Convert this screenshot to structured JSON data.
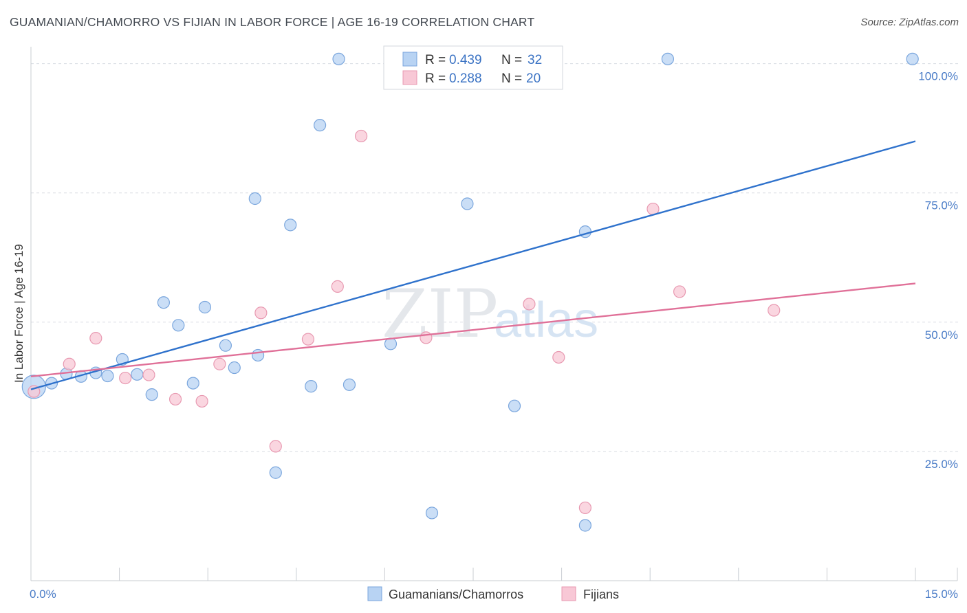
{
  "title": "GUAMANIAN/CHAMORRO VS FIJIAN IN LABOR FORCE | AGE 16-19 CORRELATION CHART",
  "source": "Source: ZipAtlas.com",
  "watermark": {
    "zip": "ZIP",
    "atlas": "atlas"
  },
  "colors": {
    "blue_fill": "#b8d3f3",
    "blue_stroke": "#7aa6dd",
    "blue_line": "#2f72cc",
    "pink_fill": "#f8c8d6",
    "pink_stroke": "#e899b1",
    "pink_line": "#e07098",
    "tick_label": "#4a7cc7",
    "grid": "#d8dce2"
  },
  "legend": {
    "rows": [
      {
        "r_label": "R =",
        "r_value": "0.439",
        "n_label": "N =",
        "n_value": "32"
      },
      {
        "r_label": "R =",
        "r_value": "0.288",
        "n_label": "N =",
        "n_value": "20"
      }
    ]
  },
  "chart_data": {
    "type": "scatter",
    "title": "GUAMANIAN/CHAMORRO VS FIJIAN IN LABOR FORCE | AGE 16-19 CORRELATION CHART",
    "xlabel": "",
    "ylabel": "In Labor Force | Age 16-19",
    "xlim": [
      0,
      15
    ],
    "ylim": [
      0,
      105
    ],
    "x_tick_labels": [
      "0.0%",
      "15.0%"
    ],
    "y_ticks": [
      25,
      50,
      75,
      100
    ],
    "y_tick_labels": [
      "25.0%",
      "50.0%",
      "75.0%",
      "100.0%"
    ],
    "grid": "horizontal dashed",
    "legend_position": "top-center",
    "series": [
      {
        "name": "Guamanians/Chamorros",
        "r": 0.439,
        "n": 32,
        "trend": {
          "x": [
            0,
            15
          ],
          "y": [
            37.0,
            85.0
          ]
        },
        "points": [
          {
            "x": 0.05,
            "y": 37.5,
            "big": true
          },
          {
            "x": 0.35,
            "y": 38.2
          },
          {
            "x": 0.6,
            "y": 40.0
          },
          {
            "x": 0.85,
            "y": 39.5
          },
          {
            "x": 1.1,
            "y": 40.2
          },
          {
            "x": 1.3,
            "y": 39.6
          },
          {
            "x": 1.55,
            "y": 42.8
          },
          {
            "x": 1.8,
            "y": 39.9
          },
          {
            "x": 2.05,
            "y": 36.0
          },
          {
            "x": 2.25,
            "y": 53.8
          },
          {
            "x": 2.5,
            "y": 49.4
          },
          {
            "x": 2.75,
            "y": 38.2
          },
          {
            "x": 2.95,
            "y": 52.9
          },
          {
            "x": 3.3,
            "y": 45.5
          },
          {
            "x": 3.45,
            "y": 41.2
          },
          {
            "x": 3.8,
            "y": 73.9
          },
          {
            "x": 3.85,
            "y": 43.6
          },
          {
            "x": 4.15,
            "y": 20.9
          },
          {
            "x": 4.4,
            "y": 68.8
          },
          {
            "x": 4.75,
            "y": 37.6
          },
          {
            "x": 4.9,
            "y": 88.1
          },
          {
            "x": 5.22,
            "y": 100.9
          },
          {
            "x": 5.4,
            "y": 37.9
          },
          {
            "x": 6.1,
            "y": 45.8
          },
          {
            "x": 6.8,
            "y": 13.1
          },
          {
            "x": 7.4,
            "y": 72.9
          },
          {
            "x": 8.2,
            "y": 33.8
          },
          {
            "x": 9.4,
            "y": 67.5
          },
          {
            "x": 9.4,
            "y": 10.7
          },
          {
            "x": 10.8,
            "y": 100.9
          },
          {
            "x": 14.95,
            "y": 100.9
          }
        ]
      },
      {
        "name": "Fijians",
        "r": 0.288,
        "n": 20,
        "trend": {
          "x": [
            0,
            15
          ],
          "y": [
            39.5,
            57.5
          ]
        },
        "points": [
          {
            "x": 0.05,
            "y": 36.6
          },
          {
            "x": 0.65,
            "y": 41.9
          },
          {
            "x": 1.1,
            "y": 46.9
          },
          {
            "x": 1.6,
            "y": 39.2
          },
          {
            "x": 2.0,
            "y": 39.8
          },
          {
            "x": 2.45,
            "y": 35.1
          },
          {
            "x": 2.9,
            "y": 34.7
          },
          {
            "x": 3.2,
            "y": 41.9
          },
          {
            "x": 3.9,
            "y": 51.8
          },
          {
            "x": 4.15,
            "y": 26.0
          },
          {
            "x": 4.7,
            "y": 46.7
          },
          {
            "x": 5.2,
            "y": 56.9
          },
          {
            "x": 5.6,
            "y": 86.0
          },
          {
            "x": 6.7,
            "y": 47.0
          },
          {
            "x": 8.45,
            "y": 53.5
          },
          {
            "x": 8.95,
            "y": 43.2
          },
          {
            "x": 9.4,
            "y": 14.1
          },
          {
            "x": 10.55,
            "y": 71.9
          },
          {
            "x": 11.0,
            "y": 55.9
          },
          {
            "x": 12.6,
            "y": 52.3
          }
        ]
      }
    ]
  }
}
